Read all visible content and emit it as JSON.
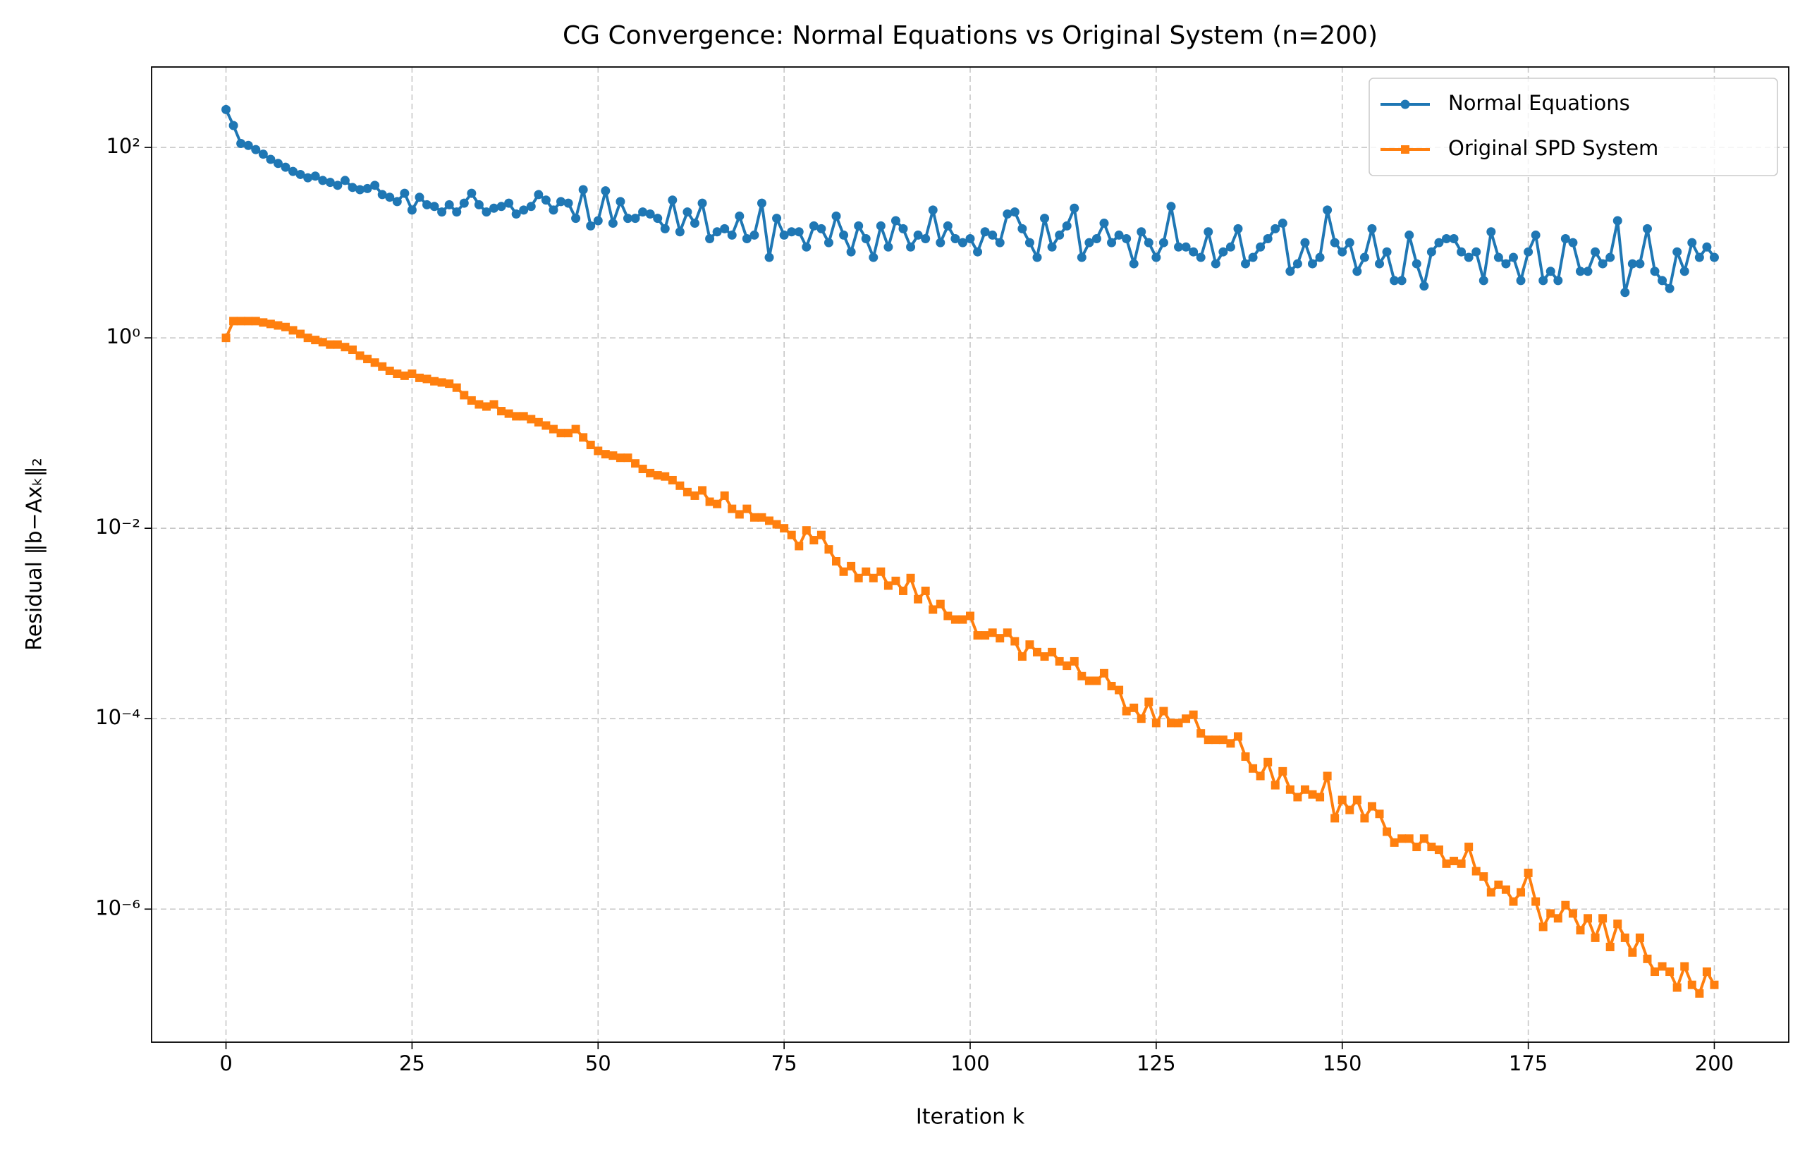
{
  "chart_data": {
    "type": "line",
    "title": "CG Convergence: Normal Equations vs Original System (n=200)",
    "x_label": "Iteration k",
    "y_label": "Residual ‖b−Axₖ‖₂",
    "log_y": true,
    "grid": true,
    "legend": "upper right",
    "xlim": [
      -10,
      210
    ],
    "ylim": [
      4e-08,
      700
    ],
    "xticks": [
      0,
      25,
      50,
      75,
      100,
      125,
      150,
      175,
      200
    ],
    "yticks": [
      {
        "value": 1e-06,
        "label": "10⁻⁶"
      },
      {
        "value": 0.0001,
        "label": "10⁻⁴"
      },
      {
        "value": 0.01,
        "label": "10⁻²"
      },
      {
        "value": 1,
        "label": "10⁰"
      },
      {
        "value": 100,
        "label": "10²"
      }
    ],
    "x": [
      0,
      1,
      2,
      3,
      4,
      5,
      6,
      7,
      8,
      9,
      10,
      11,
      12,
      13,
      14,
      15,
      16,
      17,
      18,
      19,
      20,
      21,
      22,
      23,
      24,
      25,
      26,
      27,
      28,
      29,
      30,
      31,
      32,
      33,
      34,
      35,
      36,
      37,
      38,
      39,
      40,
      41,
      42,
      43,
      44,
      45,
      46,
      47,
      48,
      49,
      50,
      51,
      52,
      53,
      54,
      55,
      56,
      57,
      58,
      59,
      60,
      61,
      62,
      63,
      64,
      65,
      66,
      67,
      68,
      69,
      70,
      71,
      72,
      73,
      74,
      75,
      76,
      77,
      78,
      79,
      80,
      81,
      82,
      83,
      84,
      85,
      86,
      87,
      88,
      89,
      90,
      91,
      92,
      93,
      94,
      95,
      96,
      97,
      98,
      99,
      100,
      101,
      102,
      103,
      104,
      105,
      106,
      107,
      108,
      109,
      110,
      111,
      112,
      113,
      114,
      115,
      116,
      117,
      118,
      119,
      120,
      121,
      122,
      123,
      124,
      125,
      126,
      127,
      128,
      129,
      130,
      131,
      132,
      133,
      134,
      135,
      136,
      137,
      138,
      139,
      140,
      141,
      142,
      143,
      144,
      145,
      146,
      147,
      148,
      149,
      150,
      151,
      152,
      153,
      154,
      155,
      156,
      157,
      158,
      159,
      160,
      161,
      162,
      163,
      164,
      165,
      166,
      167,
      168,
      169,
      170,
      171,
      172,
      173,
      174,
      175,
      176,
      177,
      178,
      179,
      180,
      181,
      182,
      183,
      184,
      185,
      186,
      187,
      188,
      189,
      190,
      191,
      192,
      193,
      194,
      195,
      196,
      197,
      198,
      199,
      200
    ],
    "series": [
      {
        "name": "Normal Equations",
        "color": "#1f77b4",
        "marker": "circle",
        "values": [
          250,
          170,
          110,
          105,
          95,
          85,
          75,
          68,
          62,
          56,
          52,
          48,
          50,
          45,
          43,
          40,
          45,
          38,
          36,
          37,
          40,
          32,
          30,
          27,
          33,
          22,
          30,
          25,
          24,
          21,
          25,
          21,
          26,
          33,
          25,
          21,
          23,
          24,
          26,
          20,
          22,
          24,
          32,
          28,
          22,
          27,
          26,
          18,
          36,
          15,
          17,
          35,
          16,
          27,
          18,
          18,
          21,
          20,
          18,
          14,
          28,
          13,
          21,
          16,
          26,
          11,
          13,
          14,
          12,
          19,
          11,
          12,
          26,
          7,
          18,
          12,
          13,
          13,
          9,
          15,
          14,
          10,
          19,
          12,
          8,
          15,
          11,
          7,
          15,
          9,
          17,
          14,
          9,
          12,
          11,
          22,
          10,
          15,
          11,
          10,
          11,
          8,
          13,
          12,
          10,
          20,
          21,
          14,
          10,
          7,
          18,
          9,
          12,
          15,
          23,
          7,
          10,
          11,
          16,
          10,
          12,
          11,
          6,
          13,
          10,
          7,
          10,
          24,
          9,
          9,
          8,
          7,
          13,
          6,
          8,
          9,
          14,
          6,
          7,
          9,
          11,
          14,
          16,
          5,
          6,
          10,
          6,
          7,
          22,
          10,
          8,
          10,
          5,
          7,
          14,
          6,
          8,
          4,
          4,
          12,
          6,
          3.5,
          8,
          10,
          11,
          11,
          8,
          7,
          8,
          4,
          13,
          7,
          6,
          7,
          4,
          8,
          12,
          4,
          5,
          4,
          11,
          10,
          5,
          5,
          8,
          6,
          7,
          17,
          3,
          6,
          6,
          14,
          5,
          4,
          3.3,
          8,
          5,
          10,
          7,
          9,
          7
        ]
      },
      {
        "name": "Original SPD System",
        "color": "#ff7f0e",
        "marker": "square",
        "values": [
          1,
          1.5,
          1.5,
          1.5,
          1.5,
          1.45,
          1.4,
          1.35,
          1.3,
          1.2,
          1.1,
          1.0,
          0.95,
          0.9,
          0.85,
          0.85,
          0.8,
          0.75,
          0.65,
          0.6,
          0.55,
          0.5,
          0.45,
          0.42,
          0.4,
          0.42,
          0.38,
          0.37,
          0.35,
          0.34,
          0.33,
          0.3,
          0.25,
          0.22,
          0.2,
          0.19,
          0.2,
          0.17,
          0.16,
          0.15,
          0.15,
          0.14,
          0.13,
          0.12,
          0.11,
          0.1,
          0.1,
          0.11,
          0.09,
          0.075,
          0.065,
          0.06,
          0.058,
          0.055,
          0.055,
          0.048,
          0.042,
          0.038,
          0.036,
          0.035,
          0.032,
          0.028,
          0.024,
          0.022,
          0.025,
          0.019,
          0.018,
          0.022,
          0.016,
          0.014,
          0.016,
          0.013,
          0.013,
          0.012,
          0.011,
          0.01,
          0.0085,
          0.0065,
          0.0095,
          0.0075,
          0.0085,
          0.006,
          0.0045,
          0.0035,
          0.004,
          0.003,
          0.0035,
          0.003,
          0.0035,
          0.0025,
          0.0028,
          0.0022,
          0.003,
          0.0018,
          0.0022,
          0.0014,
          0.0016,
          0.0012,
          0.0011,
          0.0011,
          0.0012,
          0.00075,
          0.00075,
          0.0008,
          0.0007,
          0.0008,
          0.00065,
          0.00045,
          0.0006,
          0.0005,
          0.00045,
          0.0005,
          0.0004,
          0.00036,
          0.0004,
          0.00028,
          0.00025,
          0.00025,
          0.0003,
          0.00022,
          0.0002,
          0.00012,
          0.00013,
          0.0001,
          0.00015,
          9e-05,
          0.00012,
          9e-05,
          9e-05,
          0.0001,
          0.00011,
          7e-05,
          6e-05,
          6e-05,
          6e-05,
          5.5e-05,
          6.5e-05,
          4e-05,
          3e-05,
          2.5e-05,
          3.5e-05,
          2e-05,
          2.8e-05,
          1.8e-05,
          1.5e-05,
          1.8e-05,
          1.6e-05,
          1.5e-05,
          2.5e-05,
          9e-06,
          1.4e-05,
          1.1e-05,
          1.4e-05,
          9e-06,
          1.2e-05,
          1e-05,
          6.5e-06,
          5e-06,
          5.5e-06,
          5.5e-06,
          4.5e-06,
          5.5e-06,
          4.5e-06,
          4.2e-06,
          3e-06,
          3.2e-06,
          3e-06,
          4.5e-06,
          2.5e-06,
          2.2e-06,
          1.5e-06,
          1.8e-06,
          1.6e-06,
          1.2e-06,
          1.5e-06,
          2.4e-06,
          1.2e-06,
          6.5e-07,
          9e-07,
          8e-07,
          1.1e-06,
          9e-07,
          6e-07,
          8e-07,
          5e-07,
          8e-07,
          4e-07,
          7e-07,
          5e-07,
          3.5e-07,
          5e-07,
          3e-07,
          2.2e-07,
          2.5e-07,
          2.2e-07,
          1.5e-07,
          2.5e-07,
          1.6e-07,
          1.3e-07,
          2.2e-07,
          1.6e-07
        ]
      }
    ]
  }
}
